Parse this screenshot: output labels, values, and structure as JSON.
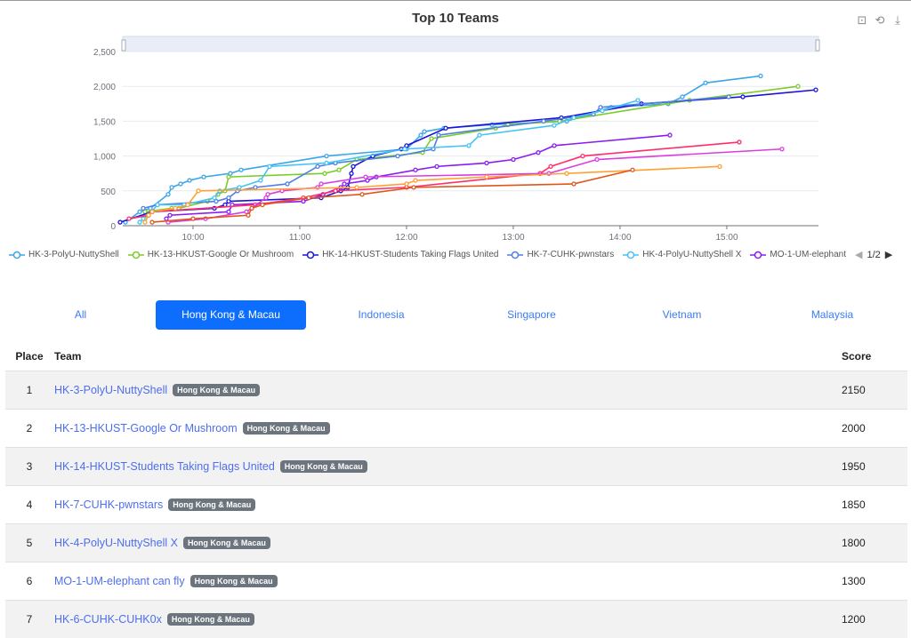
{
  "chart_data": {
    "type": "line",
    "title": "Top 10 Teams",
    "y_ticks": [
      "0",
      "500",
      "1,000",
      "1,500",
      "2,000",
      "2,500"
    ],
    "ylim": [
      0,
      2500
    ],
    "x_ticks": [
      "10:00",
      "11:00",
      "12:00",
      "13:00",
      "14:00",
      "15:00"
    ],
    "xlim": [
      "9:20",
      "15:52"
    ],
    "grid": true,
    "legend_position": "bottom",
    "legend_page": "1/2",
    "series": [
      {
        "name": "HK-3-PolyU-NuttyShell",
        "color": "#3aa6e8",
        "points": [
          [
            "9:22",
            50
          ],
          [
            "9:30",
            200
          ],
          [
            "9:36",
            250
          ],
          [
            "9:46",
            450
          ],
          [
            "9:48",
            550
          ],
          [
            "9:53",
            600
          ],
          [
            "9:58",
            650
          ],
          [
            "10:06",
            700
          ],
          [
            "10:21",
            750
          ],
          [
            "10:27",
            800
          ],
          [
            "11:15",
            1000
          ],
          [
            "12:00",
            1100
          ],
          [
            "12:08",
            1300
          ],
          [
            "12:10",
            1350
          ],
          [
            "12:21",
            1400
          ],
          [
            "12:48",
            1450
          ],
          [
            "13:30",
            1500
          ],
          [
            "13:55",
            1700
          ],
          [
            "14:27",
            1750
          ],
          [
            "14:35",
            1850
          ],
          [
            "14:48",
            2050
          ],
          [
            "15:19",
            2150
          ]
        ]
      },
      {
        "name": "HK-13-HKUST-Google Or Mushroom",
        "color": "#7ccc28",
        "points": [
          [
            "9:33",
            200
          ],
          [
            "9:48",
            250
          ],
          [
            "9:52",
            250
          ],
          [
            "10:08",
            350
          ],
          [
            "10:14",
            450
          ],
          [
            "10:18",
            500
          ],
          [
            "10:20",
            700
          ],
          [
            "11:14",
            750
          ],
          [
            "11:22",
            800
          ],
          [
            "11:32",
            950
          ],
          [
            "12:09",
            1050
          ],
          [
            "12:14",
            1250
          ],
          [
            "12:50",
            1400
          ],
          [
            "12:57",
            1450
          ],
          [
            "13:26",
            1500
          ],
          [
            "14:39",
            1800
          ],
          [
            "15:40",
            2000
          ]
        ]
      },
      {
        "name": "HK-14-HKUST-Students Taking Flags United",
        "color": "#1a14d9",
        "points": [
          [
            "9:19",
            50
          ],
          [
            "9:37",
            200
          ],
          [
            "10:12",
            250
          ],
          [
            "10:18",
            300
          ],
          [
            "10:20",
            350
          ],
          [
            "11:12",
            400
          ],
          [
            "11:23",
            500
          ],
          [
            "11:27",
            550
          ],
          [
            "11:29",
            750
          ],
          [
            "11:30",
            850
          ],
          [
            "11:41",
            1000
          ],
          [
            "11:57",
            1100
          ],
          [
            "12:00",
            1150
          ],
          [
            "12:22",
            1400
          ],
          [
            "13:27",
            1550
          ],
          [
            "14:12",
            1750
          ],
          [
            "15:09",
            1850
          ],
          [
            "15:50",
            1950
          ]
        ]
      },
      {
        "name": "HK-7-CUHK-pwnstars",
        "color": "#4f7ee6",
        "points": [
          [
            "9:32",
            250
          ],
          [
            "9:40",
            300
          ],
          [
            "10:13",
            350
          ],
          [
            "10:20",
            400
          ],
          [
            "10:25",
            500
          ],
          [
            "10:35",
            550
          ],
          [
            "10:53",
            600
          ],
          [
            "11:10",
            850
          ],
          [
            "11:20",
            900
          ],
          [
            "11:55",
            1000
          ],
          [
            "12:15",
            1100
          ],
          [
            "12:18",
            1300
          ],
          [
            "13:17",
            1500
          ],
          [
            "13:45",
            1600
          ],
          [
            "13:49",
            1700
          ],
          [
            "15:01",
            1850
          ]
        ]
      },
      {
        "name": "HK-4-PolyU-NuttyShell X",
        "color": "#45c3f2",
        "points": [
          [
            "9:30",
            50
          ],
          [
            "9:32",
            100
          ],
          [
            "9:35",
            150
          ],
          [
            "9:40",
            300
          ],
          [
            "9:55",
            300
          ],
          [
            "10:12",
            400
          ],
          [
            "10:15",
            500
          ],
          [
            "10:26",
            550
          ],
          [
            "10:38",
            650
          ],
          [
            "10:43",
            850
          ],
          [
            "11:15",
            900
          ],
          [
            "11:59",
            1100
          ],
          [
            "12:35",
            1150
          ],
          [
            "12:41",
            1300
          ],
          [
            "13:23",
            1440
          ],
          [
            "13:34",
            1550
          ],
          [
            "13:50",
            1650
          ],
          [
            "14:10",
            1800
          ]
        ]
      },
      {
        "name": "MO-1-UM-elephant",
        "color": "#8a1cf0",
        "points": [
          [
            "9:45",
            100
          ],
          [
            "9:47",
            150
          ],
          [
            "10:20",
            200
          ],
          [
            "10:22",
            300
          ],
          [
            "11:02",
            350
          ],
          [
            "11:13",
            450
          ],
          [
            "11:23",
            550
          ],
          [
            "11:25",
            600
          ],
          [
            "11:38",
            650
          ],
          [
            "11:43",
            700
          ],
          [
            "12:05",
            800
          ],
          [
            "12:17",
            850
          ],
          [
            "12:45",
            900
          ],
          [
            "13:00",
            950
          ],
          [
            "13:14",
            1050
          ],
          [
            "13:23",
            1150
          ],
          [
            "14:28",
            1300
          ]
        ]
      },
      {
        "color": "#ff2d6a",
        "points": [
          [
            "9:24",
            100
          ],
          [
            "9:35",
            150
          ],
          [
            "9:37",
            200
          ],
          [
            "10:35",
            300
          ],
          [
            "11:02",
            400
          ],
          [
            "11:20",
            500
          ],
          [
            "12:00",
            550
          ],
          [
            "13:15",
            750
          ],
          [
            "13:21",
            850
          ],
          [
            "13:39",
            1000
          ],
          [
            "15:07",
            1200
          ]
        ]
      },
      {
        "color": "#d93de0",
        "points": [
          [
            "9:46",
            50
          ],
          [
            "10:07",
            100
          ],
          [
            "10:30",
            200
          ],
          [
            "10:41",
            400
          ],
          [
            "10:42",
            450
          ],
          [
            "10:50",
            500
          ],
          [
            "11:10",
            550
          ],
          [
            "11:12",
            600
          ],
          [
            "11:37",
            700
          ],
          [
            "13:20",
            750
          ],
          [
            "13:47",
            950
          ],
          [
            "15:31",
            1100
          ]
        ]
      },
      {
        "color": "#ffa033",
        "points": [
          [
            "9:33",
            50
          ],
          [
            "9:35",
            150
          ],
          [
            "9:37",
            200
          ],
          [
            "9:50",
            250
          ],
          [
            "9:57",
            300
          ],
          [
            "10:03",
            500
          ],
          [
            "11:32",
            550
          ],
          [
            "12:00",
            600
          ],
          [
            "12:05",
            650
          ],
          [
            "12:45",
            700
          ],
          [
            "13:30",
            750
          ],
          [
            "14:56",
            850
          ]
        ]
      },
      {
        "color": "#e0561a",
        "points": [
          [
            "9:37",
            50
          ],
          [
            "10:00",
            100
          ],
          [
            "10:31",
            150
          ],
          [
            "10:33",
            250
          ],
          [
            "10:39",
            300
          ],
          [
            "11:05",
            400
          ],
          [
            "11:35",
            450
          ],
          [
            "12:04",
            550
          ],
          [
            "13:34",
            600
          ],
          [
            "14:07",
            800
          ]
        ]
      }
    ]
  },
  "toolbox": {
    "icons": [
      "zoom-icon",
      "zoom-reset-icon",
      "download-icon"
    ]
  },
  "tabs": [
    {
      "label": "All",
      "active": false
    },
    {
      "label": "Hong Kong & Macau",
      "active": true
    },
    {
      "label": "Indonesia",
      "active": false
    },
    {
      "label": "Singapore",
      "active": false
    },
    {
      "label": "Vietnam",
      "active": false
    },
    {
      "label": "Malaysia",
      "active": false
    }
  ],
  "table": {
    "headers": {
      "place": "Place",
      "team": "Team",
      "score": "Score"
    },
    "rows": [
      {
        "place": "1",
        "team": "HK-3-PolyU-NuttyShell",
        "region": "Hong Kong & Macau",
        "score": "2150"
      },
      {
        "place": "2",
        "team": "HK-13-HKUST-Google Or Mushroom",
        "region": "Hong Kong & Macau",
        "score": "2000"
      },
      {
        "place": "3",
        "team": "HK-14-HKUST-Students Taking Flags United",
        "region": "Hong Kong & Macau",
        "score": "1950"
      },
      {
        "place": "4",
        "team": "HK-7-CUHK-pwnstars",
        "region": "Hong Kong & Macau",
        "score": "1850"
      },
      {
        "place": "5",
        "team": "HK-4-PolyU-NuttyShell X",
        "region": "Hong Kong & Macau",
        "score": "1800"
      },
      {
        "place": "6",
        "team": "MO-1-UM-elephant can fly",
        "region": "Hong Kong & Macau",
        "score": "1300"
      },
      {
        "place": "7",
        "team": "HK-6-CUHK-CUHK0x",
        "region": "Hong Kong & Macau",
        "score": "1200"
      }
    ]
  }
}
